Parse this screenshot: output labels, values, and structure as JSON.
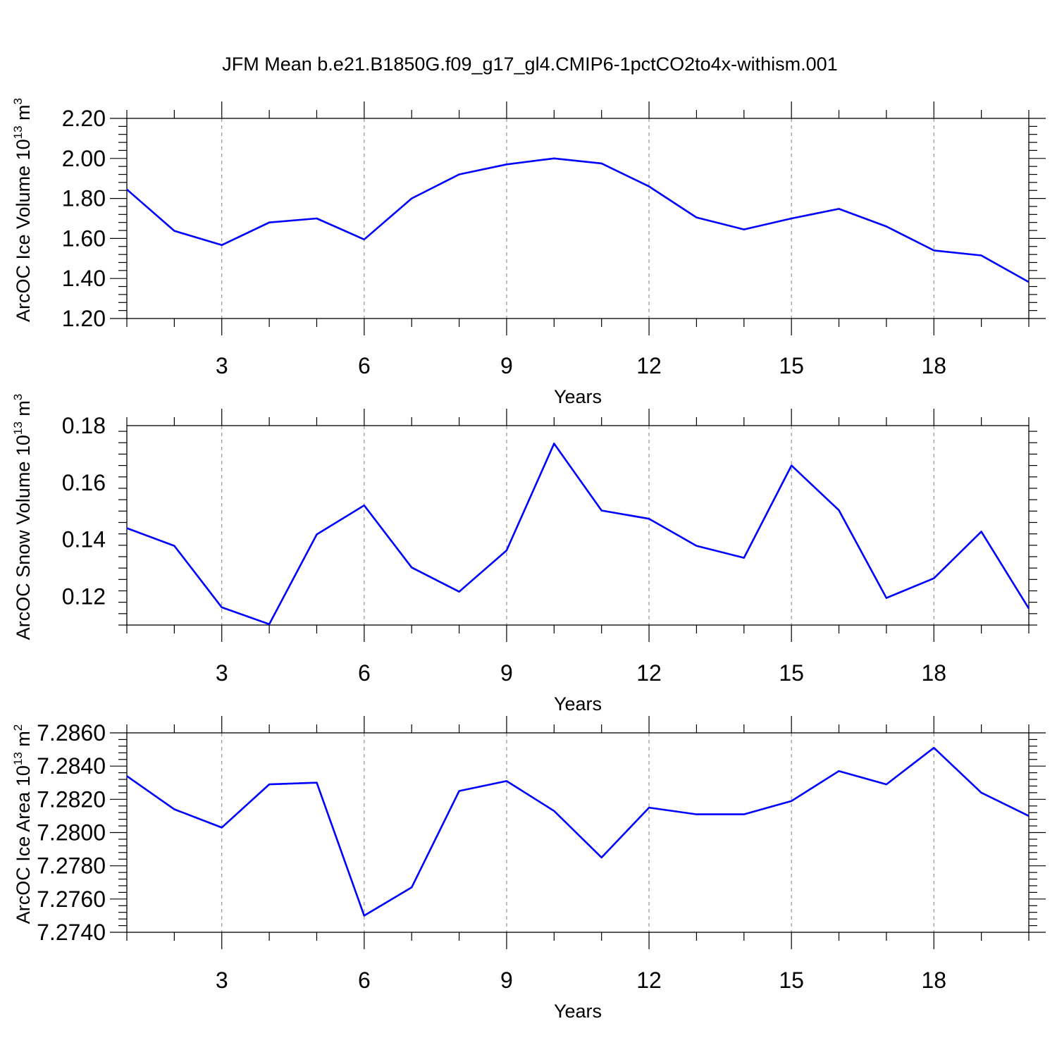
{
  "figure": {
    "title": "JFM Mean b.e21.B1850G.f09_g17_gl4.CMIP6-1pctCO2to4x-withism.001",
    "line_color": "#0000ff"
  },
  "chart_data": [
    {
      "type": "line",
      "name": "ice-volume",
      "ylabel": "ArcOC Ice Volume",
      "ylabel_unit_base": "10",
      "ylabel_unit_exp": "13",
      "ylabel_unit": "m",
      "ylabel_unit_unit_exp": "3",
      "xlabel": "Years",
      "xlim": [
        1,
        20
      ],
      "ylim": [
        1.2,
        2.2
      ],
      "x_ticks": [
        3,
        6,
        9,
        12,
        15,
        18
      ],
      "x_tick_labels": [
        "3",
        "6",
        "9",
        "12",
        "15",
        "18"
      ],
      "y_ticks": [
        1.2,
        1.4,
        1.6,
        1.8,
        2.0,
        2.2
      ],
      "y_tick_labels": [
        "1.20",
        "1.40",
        "1.60",
        "1.80",
        "2.00",
        "2.20"
      ],
      "x": [
        1,
        2,
        3,
        4,
        5,
        6,
        7,
        8,
        9,
        10,
        11,
        12,
        13,
        14,
        15,
        16,
        17,
        18,
        19,
        20
      ],
      "values": [
        1.845,
        1.638,
        1.567,
        1.68,
        1.7,
        1.595,
        1.8,
        1.92,
        1.97,
        2.0,
        1.975,
        1.86,
        1.705,
        1.645,
        1.7,
        1.748,
        1.66,
        1.54,
        1.515,
        1.382
      ]
    },
    {
      "type": "line",
      "name": "snow-volume",
      "ylabel": "ArcOC Snow Volume",
      "ylabel_unit_base": "10",
      "ylabel_unit_exp": "13",
      "ylabel_unit": "m",
      "ylabel_unit_unit_exp": "3",
      "xlabel": "Years",
      "xlim": [
        1,
        20
      ],
      "ylim": [
        0.11,
        0.18
      ],
      "x_ticks": [
        3,
        6,
        9,
        12,
        15,
        18
      ],
      "x_tick_labels": [
        "3",
        "6",
        "9",
        "12",
        "15",
        "18"
      ],
      "y_ticks": [
        0.12,
        0.14,
        0.16,
        0.18
      ],
      "y_tick_labels": [
        "0.12",
        "0.14",
        "0.16",
        "0.18"
      ],
      "x": [
        1,
        2,
        3,
        4,
        5,
        6,
        7,
        8,
        9,
        10,
        11,
        12,
        13,
        14,
        15,
        16,
        17,
        18,
        19,
        20
      ],
      "values": [
        0.144,
        0.1378,
        0.1162,
        0.1103,
        0.1418,
        0.152,
        0.1302,
        0.1217,
        0.1362,
        0.1737,
        0.1502,
        0.1473,
        0.1378,
        0.1336,
        0.166,
        0.1503,
        0.1195,
        0.1264,
        0.1428,
        0.1158
      ]
    },
    {
      "type": "line",
      "name": "ice-area",
      "ylabel": "ArcOC Ice Area",
      "ylabel_unit_base": "10",
      "ylabel_unit_exp": "13",
      "ylabel_unit": "m",
      "ylabel_unit_unit_exp": "2",
      "xlabel": "Years",
      "xlim": [
        1,
        20
      ],
      "ylim": [
        7.274,
        7.286
      ],
      "x_ticks": [
        3,
        6,
        9,
        12,
        15,
        18
      ],
      "x_tick_labels": [
        "3",
        "6",
        "9",
        "12",
        "15",
        "18"
      ],
      "y_ticks": [
        7.274,
        7.276,
        7.278,
        7.28,
        7.282,
        7.284,
        7.286
      ],
      "y_tick_labels": [
        "7.2740",
        "7.2760",
        "7.2780",
        "7.2800",
        "7.2820",
        "7.2840",
        "7.2860"
      ],
      "x": [
        1,
        2,
        3,
        4,
        5,
        6,
        7,
        8,
        9,
        10,
        11,
        12,
        13,
        14,
        15,
        16,
        17,
        18,
        19,
        20
      ],
      "values": [
        7.2834,
        7.2814,
        7.2803,
        7.2829,
        7.283,
        7.275,
        7.2767,
        7.2825,
        7.2831,
        7.2813,
        7.2785,
        7.2815,
        7.2811,
        7.2811,
        7.2819,
        7.2837,
        7.2829,
        7.2851,
        7.2824,
        7.281
      ]
    }
  ]
}
